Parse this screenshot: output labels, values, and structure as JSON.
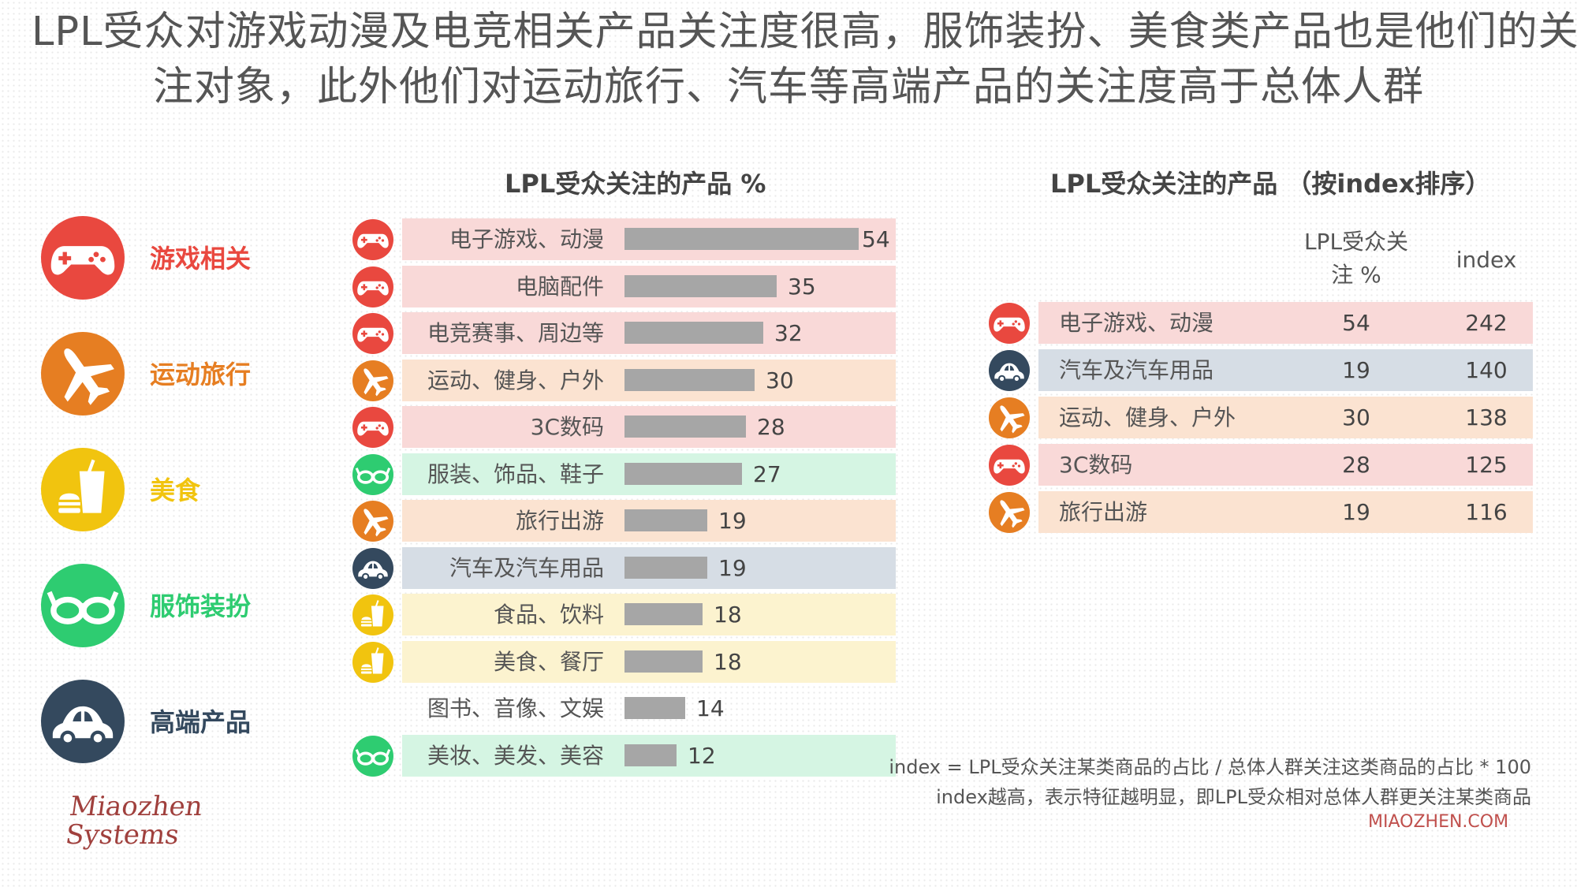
{
  "title": {
    "line1": "LPL受众对游戏动漫及电竞相关产品关注度很高，服饰装扮、美食类产品也是他们的关",
    "line2": "注对象，此外他们对运动旅行、汽车等高端产品的关注度高于总体人群"
  },
  "colors": {
    "game": "#e9483f",
    "travel": "#e67e22",
    "food": "#f1c40f",
    "fashion": "#2ecc71",
    "premium": "#34495e",
    "bg_game": "#f9d9d8",
    "bg_travel": "#fbe3d1",
    "bg_food": "#fcf3cf",
    "bg_fashion": "#d5f5e3",
    "bg_premium": "#d6dde5"
  },
  "categories": [
    {
      "label": "游戏相关",
      "icon": "gamepad-icon",
      "color": "#e9483f"
    },
    {
      "label": "运动旅行",
      "icon": "airplane-icon",
      "color": "#e67e22"
    },
    {
      "label": "美食",
      "icon": "burger-drink-icon",
      "color": "#f1c40f"
    },
    {
      "label": "服饰装扮",
      "icon": "glasses-icon",
      "color": "#2ecc71"
    },
    {
      "label": "高端产品",
      "icon": "car-icon",
      "color": "#34495e"
    }
  ],
  "chart_data": [
    {
      "type": "bar",
      "orientation": "horizontal",
      "title": "LPL受众关注的产品 %",
      "unit": "%",
      "categories": [
        "电子游戏、动漫",
        "电脑配件",
        "电竞赛事、周边等",
        "运动、健身、户外",
        "3C数码",
        "服装、饰品、鞋子",
        "旅行出游",
        "汽车及汽车用品",
        "食品、饮料",
        "美食、餐厅",
        "图书、音像、文娱",
        "美妆、美发、美容"
      ],
      "values": [
        54,
        35,
        32,
        30,
        28,
        27,
        19,
        19,
        18,
        18,
        14,
        12
      ],
      "groups": [
        "game",
        "game",
        "game",
        "travel",
        "game",
        "fashion",
        "travel",
        "premium",
        "food",
        "food",
        "none",
        "fashion"
      ],
      "xlim": [
        0,
        54
      ]
    },
    {
      "type": "table",
      "title": "LPL受众关注的产品 （按index排序）",
      "columns": [
        "LPL受众关注 %",
        "index"
      ],
      "rows": [
        {
          "label": "电子游戏、动漫",
          "pct": 54,
          "index": 242,
          "group": "game"
        },
        {
          "label": "汽车及汽车用品",
          "pct": 19,
          "index": 140,
          "group": "premium"
        },
        {
          "label": "运动、健身、户外",
          "pct": 30,
          "index": 138,
          "group": "travel"
        },
        {
          "label": "3C数码",
          "pct": 28,
          "index": 125,
          "group": "game"
        },
        {
          "label": "旅行出游",
          "pct": 19,
          "index": 116,
          "group": "travel"
        }
      ]
    }
  ],
  "table_header": {
    "pct_line1": "LPL受众关",
    "pct_line2": "注 %",
    "index": "index"
  },
  "notes": {
    "formula": "index = LPL受众关注某类商品的占比 / 总体人群关注这类商品的占比 * 100",
    "explain": "index越高，表示特征越明显，即LPL受众相对总体人群更关注某类商品"
  },
  "source": "MIAOZHEN.COM",
  "logo": {
    "line1": "Miaozhen",
    "line2": "Systems"
  }
}
